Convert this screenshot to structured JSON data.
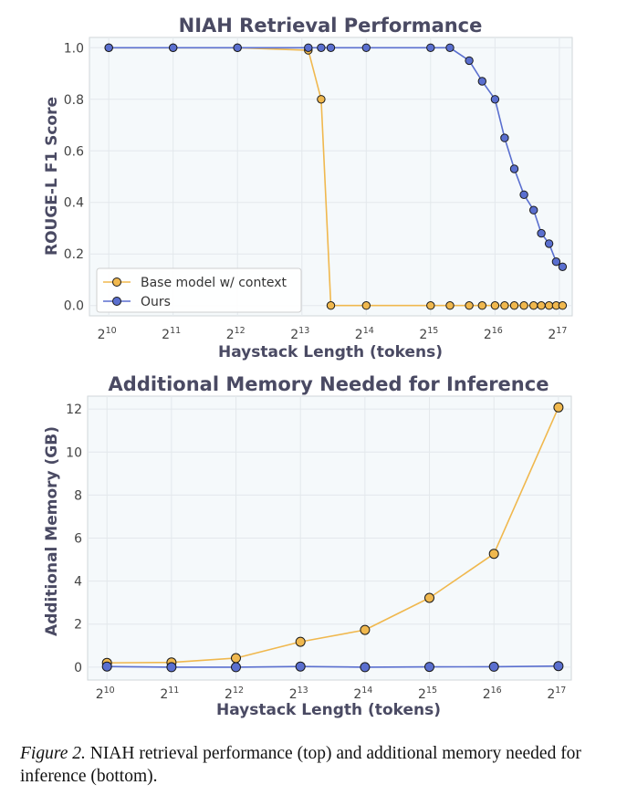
{
  "colors": {
    "base": "#f0b84e",
    "ours": "#5a6fcf",
    "marker_edge": "#1a1a1a"
  },
  "x_ticks": [
    {
      "base": "2",
      "exp": "10",
      "value": 10
    },
    {
      "base": "2",
      "exp": "11",
      "value": 11
    },
    {
      "base": "2",
      "exp": "12",
      "value": 12
    },
    {
      "base": "2",
      "exp": "13",
      "value": 13
    },
    {
      "base": "2",
      "exp": "14",
      "value": 14
    },
    {
      "base": "2",
      "exp": "15",
      "value": 15
    },
    {
      "base": "2",
      "exp": "16",
      "value": 16
    },
    {
      "base": "2",
      "exp": "17",
      "value": 17
    }
  ],
  "chart_data": [
    {
      "type": "line",
      "title": "NIAH Retrieval Performance",
      "xlabel": "Haystack Length (tokens)",
      "ylabel": "ROUGE-L F1 Score",
      "x_scale": "log2",
      "xlim": [
        9.7,
        17.2
      ],
      "ylim": [
        -0.04,
        1.04
      ],
      "yticks": [
        0.0,
        0.2,
        0.4,
        0.6,
        0.8,
        1.0
      ],
      "ytick_labels": [
        "0.0",
        "0.2",
        "0.4",
        "0.6",
        "0.8",
        "1.0"
      ],
      "grid": true,
      "legend": "lower-left",
      "series": [
        {
          "name": "Base model w/ context",
          "color_key": "base",
          "x_log2": [
            10,
            11,
            12,
            13.1,
            13.3,
            13.45,
            14,
            15,
            15.3,
            15.6,
            15.8,
            16,
            16.15,
            16.3,
            16.45,
            16.6,
            16.72,
            16.84,
            16.95,
            17.05
          ],
          "values": [
            1.0,
            1.0,
            1.0,
            0.99,
            0.8,
            0.0,
            0.0,
            0.0,
            0.0,
            0.0,
            0.0,
            0.0,
            0.0,
            0.0,
            0.0,
            0.0,
            0.0,
            0.0,
            0.0,
            0.0
          ]
        },
        {
          "name": "Ours",
          "color_key": "ours",
          "x_log2": [
            10,
            11,
            12,
            13.1,
            13.3,
            13.45,
            14,
            15,
            15.3,
            15.6,
            15.8,
            16,
            16.15,
            16.3,
            16.45,
            16.6,
            16.72,
            16.84,
            16.95,
            17.05
          ],
          "values": [
            1.0,
            1.0,
            1.0,
            1.0,
            1.0,
            1.0,
            1.0,
            1.0,
            1.0,
            0.95,
            0.87,
            0.8,
            0.65,
            0.53,
            0.43,
            0.37,
            0.28,
            0.24,
            0.17,
            0.15
          ]
        }
      ]
    },
    {
      "type": "line",
      "title": "Additional Memory Needed for Inference",
      "xlabel": "Haystack Length (tokens)",
      "ylabel": "Additional Memory (GB)",
      "x_scale": "log2",
      "xlim": [
        9.7,
        17.2
      ],
      "ylim": [
        -0.6,
        12.6
      ],
      "yticks": [
        0,
        2,
        4,
        6,
        8,
        10,
        12
      ],
      "ytick_labels": [
        "0",
        "2",
        "4",
        "6",
        "8",
        "10",
        "12"
      ],
      "grid": true,
      "series": [
        {
          "name": "Base model w/ context",
          "color_key": "base",
          "x_log2": [
            10,
            11,
            12,
            13,
            14,
            15,
            16,
            17
          ],
          "values": [
            0.2,
            0.22,
            0.42,
            1.18,
            1.73,
            3.22,
            5.27,
            12.08
          ]
        },
        {
          "name": "Ours",
          "color_key": "ours",
          "x_log2": [
            10,
            11,
            12,
            13,
            14,
            15,
            16,
            17
          ],
          "values": [
            0.03,
            0.0,
            0.0,
            0.03,
            0.0,
            0.01,
            0.02,
            0.05
          ]
        }
      ]
    }
  ],
  "caption": {
    "label": "Figure 2.",
    "text": " NIAH retrieval performance (top) and additional memory needed for inference (bottom)."
  }
}
